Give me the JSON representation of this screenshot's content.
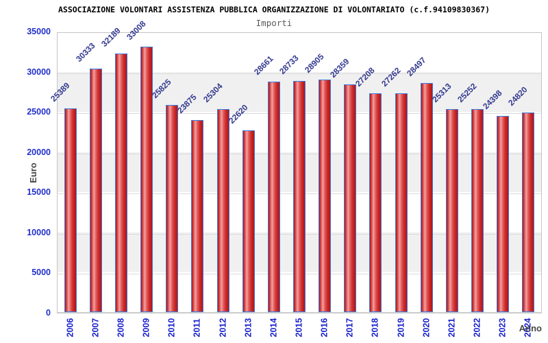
{
  "header": {
    "title": "ASSOCIAZIONE VOLONTARI ASSISTENZA PUBBLICA ORGANIZZAZIONE DI VOLONTARIATO (c.f.94109830367)",
    "subtitle": "Importi"
  },
  "chart_data": {
    "type": "bar",
    "title": "ASSOCIAZIONE VOLONTARI ASSISTENZA PUBBLICA ORGANIZZAZIONE DI VOLONTARIATO (c.f.94109830367)",
    "subtitle": "Importi",
    "xlabel": "Anno",
    "ylabel": "Euro",
    "categories": [
      "2006",
      "2007",
      "2008",
      "2009",
      "2010",
      "2011",
      "2012",
      "2013",
      "2014",
      "2015",
      "2016",
      "2017",
      "2018",
      "2019",
      "2020",
      "2021",
      "2022",
      "2023",
      "2024"
    ],
    "values": [
      25389,
      30333,
      32189,
      33008,
      25825,
      23875,
      25304,
      22620,
      28661,
      28733,
      28905,
      28359,
      27208,
      27262,
      28497,
      25313,
      25252,
      24398,
      24820
    ],
    "ylim": [
      0,
      35000
    ],
    "ytick_step": 5000,
    "yticks": [
      0,
      5000,
      10000,
      15000,
      20000,
      25000,
      30000,
      35000
    ],
    "grid": true,
    "legend": null,
    "band_colors": [
      "#ffffff",
      "#f0f0f0"
    ],
    "colors": {
      "bar_fill_dark": "#b21414",
      "bar_fill_light": "#f4a0a0",
      "bar_border": "#3b7de0",
      "value_label": "#333a8f",
      "tick_label_blue": "#2230cc",
      "axis_title_gray": "#454545"
    }
  }
}
